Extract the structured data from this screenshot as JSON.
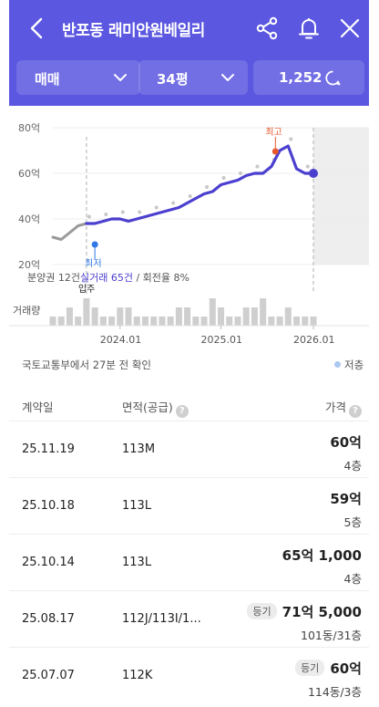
{
  "header": {
    "title": "반포동 래미안원베일리",
    "filters": {
      "trade_type": "매매",
      "size": "34평",
      "chat_count": "1,252"
    }
  },
  "colors": {
    "brand": "#5b57e0",
    "line": "#4b3fcf",
    "high": "#e8572c",
    "low": "#2f78e6"
  },
  "chart_data": {
    "type": "line",
    "y_ticks": [
      "80억",
      "60억",
      "40억",
      "20억"
    ],
    "ylim": [
      20,
      80
    ],
    "x_ticks": [
      "2024.01",
      "2025.01",
      "2026.01"
    ],
    "high_label": "최고",
    "low_label": "최저",
    "movein_label": "입주",
    "volume_label": "거래량",
    "summary": {
      "prefix": "분양권 12건",
      "highlight": "실거래 65건",
      "suffix": " / 회전율 8%"
    },
    "series": [
      {
        "x": [
          "2023.05",
          "2023.06",
          "2023.07",
          "2023.08",
          "2023.09",
          "2023.10",
          "2023.11",
          "2023.12",
          "2024.01",
          "2024.02",
          "2024.03",
          "2024.04",
          "2024.05",
          "2024.06",
          "2024.07",
          "2024.08",
          "2024.09",
          "2024.10",
          "2024.11",
          "2024.12",
          "2025.01",
          "2025.02",
          "2025.03",
          "2025.04",
          "2025.05",
          "2025.06",
          "2025.07",
          "2025.08",
          "2025.09",
          "2025.10",
          "2025.11",
          "2025.12"
        ],
        "values": [
          32,
          31,
          34,
          37,
          38,
          38,
          39,
          40,
          40,
          39,
          40,
          41,
          42,
          43,
          44,
          45,
          47,
          49,
          51,
          52,
          55,
          56,
          57,
          59,
          60,
          60,
          63,
          70,
          72,
          62,
          60,
          60
        ]
      }
    ],
    "volume": [
      1,
      1,
      2,
      1,
      3,
      2,
      1,
      1,
      2,
      2,
      1,
      1,
      1,
      1,
      1,
      2,
      2,
      1,
      1,
      3,
      2,
      1,
      1,
      2,
      2,
      3,
      1,
      1,
      2,
      1,
      1,
      1
    ]
  },
  "source_text": "국토교통부에서 27분 전 확인",
  "legend_low": "저층",
  "table": {
    "headers": {
      "date": "계약일",
      "area": "면적(공급)",
      "price": "가격"
    },
    "rows": [
      {
        "date": "25.11.19",
        "area": "113M",
        "tag": "",
        "price": "60억",
        "floor": "4층"
      },
      {
        "date": "25.10.18",
        "area": "113L",
        "tag": "",
        "price": "59억",
        "floor": "5층"
      },
      {
        "date": "25.10.14",
        "area": "113L",
        "tag": "",
        "price": "65억 1,000",
        "floor": "4층"
      },
      {
        "date": "25.08.17",
        "area": "112J/113I/1...",
        "tag": "등기",
        "price": "71억 5,000",
        "floor": "101동/31층"
      },
      {
        "date": "25.07.07",
        "area": "112K",
        "tag": "등기",
        "price": "60억",
        "floor": "114동/3층"
      }
    ]
  }
}
